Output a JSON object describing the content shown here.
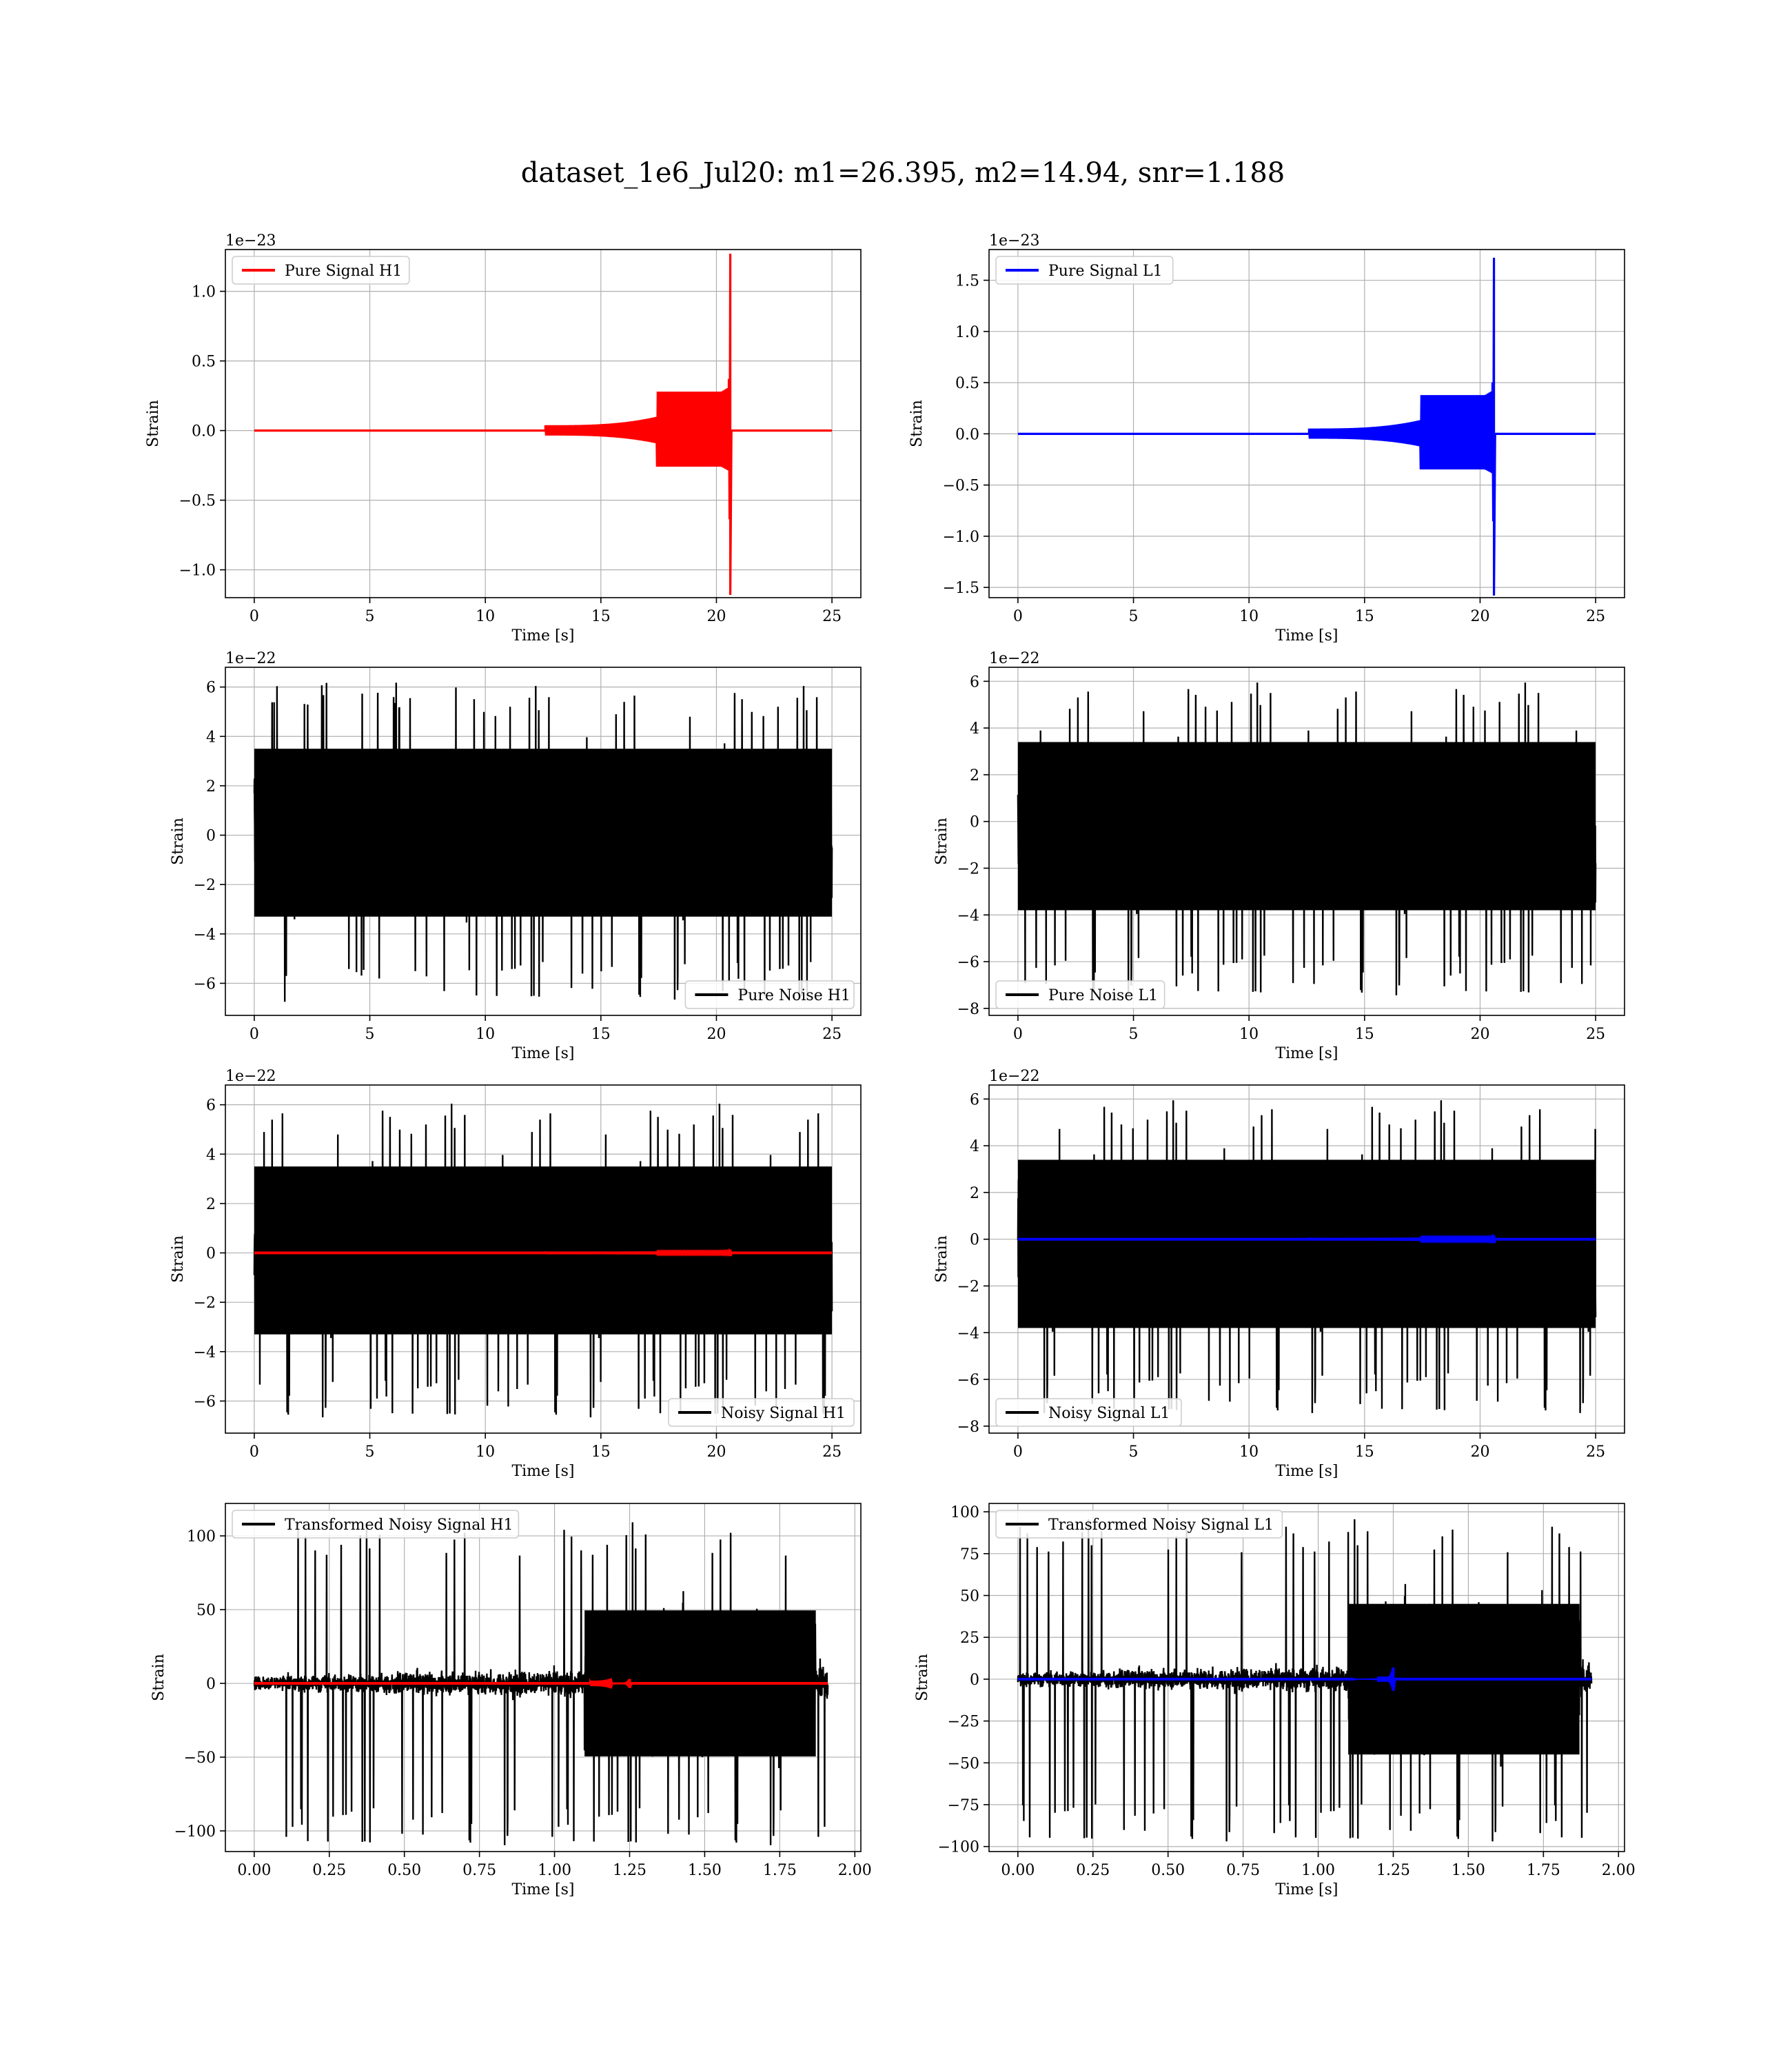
{
  "figure": {
    "title": "dataset_1e6_Jul20: m1=26.395, m2=14.94, snr=1.188"
  },
  "chart_data": [
    {
      "type": "line",
      "kind": "chirp",
      "row": 0,
      "col": 0,
      "xlabel": "Time [s]",
      "ylabel": "Strain",
      "offset_text": "1e−23",
      "xlim": [
        -1.25,
        26.25
      ],
      "ylim": [
        -1.2,
        1.3
      ],
      "xticks": [
        0,
        5,
        10,
        15,
        20,
        25
      ],
      "xtick_labels": [
        "0",
        "5",
        "10",
        "15",
        "20",
        "25"
      ],
      "yticks": [
        -1.0,
        -0.5,
        0.0,
        0.5,
        1.0
      ],
      "ytick_labels": [
        "−1.0",
        "−0.5",
        "0.0",
        "0.5",
        "1.0"
      ],
      "legend": {
        "location": "upper left"
      },
      "grid": true,
      "series": [
        {
          "name": "Pure Signal H1",
          "color": "#ff0000",
          "x_range": [
            0,
            25
          ],
          "merger_time": 20.6,
          "peak_max": 1.27,
          "peak_min": -1.18,
          "envelope_at_19s": 0.28
        }
      ]
    },
    {
      "type": "line",
      "kind": "chirp",
      "row": 0,
      "col": 1,
      "xlabel": "Time [s]",
      "ylabel": "Strain",
      "offset_text": "1e−23",
      "xlim": [
        -1.25,
        26.25
      ],
      "ylim": [
        -1.6,
        1.8
      ],
      "xticks": [
        0,
        5,
        10,
        15,
        20,
        25
      ],
      "xtick_labels": [
        "0",
        "5",
        "10",
        "15",
        "20",
        "25"
      ],
      "yticks": [
        -1.5,
        -1.0,
        -0.5,
        0.0,
        0.5,
        1.0,
        1.5
      ],
      "ytick_labels": [
        "−1.5",
        "−1.0",
        "−0.5",
        "0.0",
        "0.5",
        "1.0",
        "1.5"
      ],
      "legend": {
        "location": "upper left"
      },
      "grid": true,
      "series": [
        {
          "name": "Pure Signal L1",
          "color": "#0000ff",
          "x_range": [
            0,
            25
          ],
          "merger_time": 20.6,
          "peak_max": 1.72,
          "peak_min": -1.58,
          "envelope_at_19s": 0.37
        }
      ]
    },
    {
      "type": "line",
      "kind": "noise",
      "row": 1,
      "col": 0,
      "xlabel": "Time [s]",
      "ylabel": "Strain",
      "offset_text": "1e−22",
      "xlim": [
        -1.25,
        26.25
      ],
      "ylim": [
        -7.3,
        6.8
      ],
      "xticks": [
        0,
        5,
        10,
        15,
        20,
        25
      ],
      "xtick_labels": [
        "0",
        "5",
        "10",
        "15",
        "20",
        "25"
      ],
      "yticks": [
        -6,
        -4,
        -2,
        0,
        2,
        4,
        6
      ],
      "ytick_labels": [
        "−6",
        "−4",
        "−2",
        "0",
        "2",
        "4",
        "6"
      ],
      "legend": {
        "location": "lower right"
      },
      "grid": true,
      "series": [
        {
          "name": "Pure Noise H1",
          "color": "#000000",
          "x_range": [
            0,
            25
          ],
          "band": [
            -3.3,
            3.5
          ],
          "max": 6.2,
          "min": -6.8
        }
      ]
    },
    {
      "type": "line",
      "kind": "noise",
      "row": 1,
      "col": 1,
      "xlabel": "Time [s]",
      "ylabel": "Strain",
      "offset_text": "1e−22",
      "xlim": [
        -1.25,
        26.25
      ],
      "ylim": [
        -8.3,
        6.6
      ],
      "xticks": [
        0,
        5,
        10,
        15,
        20,
        25
      ],
      "xtick_labels": [
        "0",
        "5",
        "10",
        "15",
        "20",
        "25"
      ],
      "yticks": [
        -8,
        -6,
        -4,
        -2,
        0,
        2,
        4,
        6
      ],
      "ytick_labels": [
        "−8",
        "−6",
        "−4",
        "−2",
        "0",
        "2",
        "4",
        "6"
      ],
      "legend": {
        "location": "lower left"
      },
      "grid": true,
      "series": [
        {
          "name": "Pure Noise L1",
          "color": "#000000",
          "x_range": [
            0,
            25
          ],
          "band": [
            -3.8,
            3.4
          ],
          "max": 6.1,
          "min": -7.6
        }
      ]
    },
    {
      "type": "line",
      "kind": "noisy",
      "row": 2,
      "col": 0,
      "xlabel": "Time [s]",
      "ylabel": "Strain",
      "offset_text": "1e−22",
      "xlim": [
        -1.25,
        26.25
      ],
      "ylim": [
        -7.3,
        6.8
      ],
      "xticks": [
        0,
        5,
        10,
        15,
        20,
        25
      ],
      "xtick_labels": [
        "0",
        "5",
        "10",
        "15",
        "20",
        "25"
      ],
      "yticks": [
        -6,
        -4,
        -2,
        0,
        2,
        4,
        6
      ],
      "ytick_labels": [
        "−6",
        "−4",
        "−2",
        "0",
        "2",
        "4",
        "6"
      ],
      "legend": {
        "location": "lower right"
      },
      "grid": true,
      "series": [
        {
          "name": "Noisy Signal H1",
          "color": "#000000",
          "x_range": [
            0,
            25
          ],
          "band": [
            -3.3,
            3.5
          ],
          "max": 6.2,
          "min": -6.8
        },
        {
          "name": "",
          "color": "#ff0000",
          "x_range": [
            0,
            25
          ],
          "merger_time": 20.6,
          "peak_max": 0.13,
          "peak_min": -0.12
        }
      ]
    },
    {
      "type": "line",
      "kind": "noisy",
      "row": 2,
      "col": 1,
      "xlabel": "Time [s]",
      "ylabel": "Strain",
      "offset_text": "1e−22",
      "xlim": [
        -1.25,
        26.25
      ],
      "ylim": [
        -8.3,
        6.6
      ],
      "xticks": [
        0,
        5,
        10,
        15,
        20,
        25
      ],
      "xtick_labels": [
        "0",
        "5",
        "10",
        "15",
        "20",
        "25"
      ],
      "yticks": [
        -8,
        -6,
        -4,
        -2,
        0,
        2,
        4,
        6
      ],
      "ytick_labels": [
        "−8",
        "−6",
        "−4",
        "−2",
        "0",
        "2",
        "4",
        "6"
      ],
      "legend": {
        "location": "lower left"
      },
      "grid": true,
      "series": [
        {
          "name": "Noisy Signal L1",
          "color": "#000000",
          "x_range": [
            0,
            25
          ],
          "band": [
            -3.8,
            3.4
          ],
          "max": 6.1,
          "min": -7.6
        },
        {
          "name": "",
          "color": "#0000ff",
          "x_range": [
            0,
            25
          ],
          "merger_time": 20.6,
          "peak_max": 0.17,
          "peak_min": -0.16
        }
      ]
    },
    {
      "type": "line",
      "kind": "transformed",
      "row": 3,
      "col": 0,
      "xlabel": "Time [s]",
      "ylabel": "Strain",
      "offset_text": "",
      "xlim": [
        -0.096,
        2.02
      ],
      "ylim": [
        -114,
        122
      ],
      "xticks": [
        0.0,
        0.25,
        0.5,
        0.75,
        1.0,
        1.25,
        1.5,
        1.75,
        2.0
      ],
      "xtick_labels": [
        "0.00",
        "0.25",
        "0.50",
        "0.75",
        "1.00",
        "1.25",
        "1.50",
        "1.75",
        "2.00"
      ],
      "yticks": [
        -100,
        -50,
        0,
        50,
        100
      ],
      "ytick_labels": [
        "−100",
        "−50",
        "0",
        "50",
        "100"
      ],
      "legend": {
        "location": "upper left"
      },
      "grid": true,
      "series": [
        {
          "name": "Transformed Noisy Signal H1",
          "color": "#000000",
          "x_range": [
            0,
            1.91
          ],
          "quiet_amp": 12,
          "loud_amp": 55,
          "loud_start": 1.1,
          "loud_end": 1.87,
          "max": 112,
          "min": -112
        },
        {
          "name": "",
          "color": "#ff0000",
          "x_range": [
            0,
            1.91
          ],
          "merger_time": 1.25,
          "peak_max": 3,
          "peak_min": -3
        }
      ]
    },
    {
      "type": "line",
      "kind": "transformed",
      "row": 3,
      "col": 1,
      "xlabel": "Time [s]",
      "ylabel": "Strain",
      "offset_text": "",
      "xlim": [
        -0.096,
        2.02
      ],
      "ylim": [
        -103,
        105
      ],
      "xticks": [
        0.0,
        0.25,
        0.5,
        0.75,
        1.0,
        1.25,
        1.5,
        1.75,
        2.0
      ],
      "xtick_labels": [
        "0.00",
        "0.25",
        "0.50",
        "0.75",
        "1.00",
        "1.25",
        "1.50",
        "1.75",
        "2.00"
      ],
      "yticks": [
        -100,
        -75,
        -50,
        -25,
        0,
        25,
        50,
        75,
        100
      ],
      "ytick_labels": [
        "−100",
        "−75",
        "−50",
        "−25",
        "0",
        "25",
        "50",
        "75",
        "100"
      ],
      "legend": {
        "location": "upper left"
      },
      "grid": true,
      "series": [
        {
          "name": "Transformed Noisy Signal L1",
          "color": "#000000",
          "x_range": [
            0,
            1.91
          ],
          "quiet_amp": 10,
          "loud_amp": 50,
          "loud_start": 1.1,
          "loud_end": 1.87,
          "max": 98,
          "min": -99
        },
        {
          "name": "",
          "color": "#0000ff",
          "x_range": [
            0,
            1.91
          ],
          "merger_time": 1.25,
          "peak_max": 7,
          "peak_min": -7
        }
      ]
    }
  ]
}
